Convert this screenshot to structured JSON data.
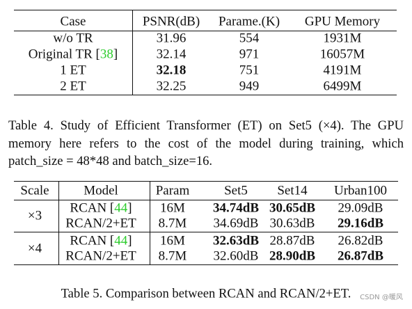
{
  "table4": {
    "header": [
      "Case",
      "PSNR(dB)",
      "Parame.(K)",
      "GPU Memory"
    ],
    "rows": [
      [
        "w/o TR",
        "31.96",
        "554",
        "1931M"
      ],
      [
        {
          "parts": [
            {
              "text": "Original TR ["
            },
            {
              "text": "38",
              "cite": true
            },
            {
              "text": "]"
            }
          ]
        },
        "32.14",
        "971",
        "16057M"
      ],
      [
        "1 ET",
        {
          "text": "32.18",
          "bold": true
        },
        "751",
        "4191M"
      ],
      [
        "2 ET",
        "32.25",
        "949",
        "6499M"
      ]
    ],
    "caption": "Table 4. Study of Efficient Transformer (ET) on Set5 (×4). The GPU memory here refers to the cost of the model during training, which patch_size = 48*48 and batch_size=16."
  },
  "table5": {
    "header": [
      "Scale",
      "Model",
      "Param",
      "Set5",
      "Set14",
      "Urban100"
    ],
    "groups": [
      {
        "scale": "×3",
        "rows": [
          [
            {
              "parts": [
                {
                  "text": "RCAN ["
                },
                {
                  "text": "44",
                  "cite": true
                },
                {
                  "text": "]"
                }
              ]
            },
            "16M",
            {
              "text": "34.74dB",
              "bold": true
            },
            {
              "text": "30.65dB",
              "bold": true
            },
            "29.09dB"
          ],
          [
            "RCAN/2+ET",
            "8.7M",
            "34.69dB",
            "30.63dB",
            {
              "text": "29.16dB",
              "bold": true
            }
          ]
        ]
      },
      {
        "scale": "×4",
        "rows": [
          [
            {
              "parts": [
                {
                  "text": "RCAN ["
                },
                {
                  "text": "44",
                  "cite": true
                },
                {
                  "text": "]"
                }
              ]
            },
            "16M",
            {
              "text": "32.63dB",
              "bold": true
            },
            "28.87dB",
            "26.82dB"
          ],
          [
            "RCAN/2+ET",
            "8.7M",
            "32.60dB",
            {
              "text": "28.90dB",
              "bold": true
            },
            {
              "text": "26.87dB",
              "bold": true
            }
          ]
        ]
      }
    ],
    "caption": "Table 5. Comparison between RCAN and RCAN/2+ET."
  },
  "watermark": "CSDN @暖风"
}
